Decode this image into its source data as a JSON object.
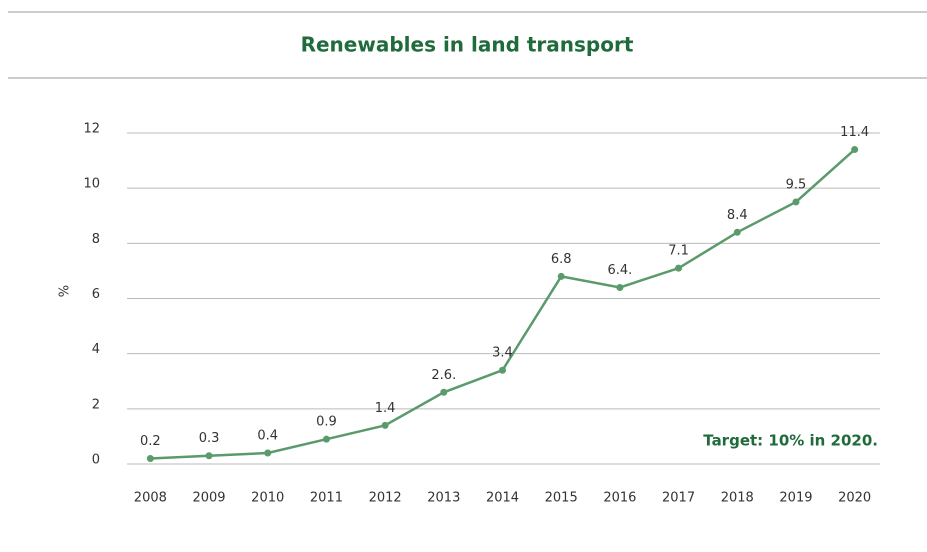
{
  "chart_data": {
    "type": "line",
    "title": "Renewables in land transport",
    "y_label": "%",
    "annotation": "Target: 10% in 2020.",
    "categories": [
      "2008",
      "2009",
      "2010",
      "2011",
      "2012",
      "2013",
      "2014",
      "2015",
      "2016",
      "2017",
      "2018",
      "2019",
      "2020"
    ],
    "series": [
      {
        "name": "Renewables in land transport",
        "color": "#5b9a6a",
        "values": [
          0.2,
          0.3,
          0.4,
          0.9,
          1.4,
          2.6,
          3.4,
          6.8,
          6.4,
          7.1,
          8.4,
          9.5,
          11.4
        ],
        "value_labels": [
          "0.2",
          "0.3",
          "0.4",
          "0.9",
          "1.4",
          "2.6.",
          "3.4",
          "6.8",
          "6.4.",
          "7.1",
          "8.4",
          "9.5",
          "11.4"
        ]
      }
    ],
    "ylim": [
      0,
      12
    ],
    "yticks": [
      0,
      2,
      4,
      6,
      8,
      10,
      12
    ],
    "grid": true
  }
}
